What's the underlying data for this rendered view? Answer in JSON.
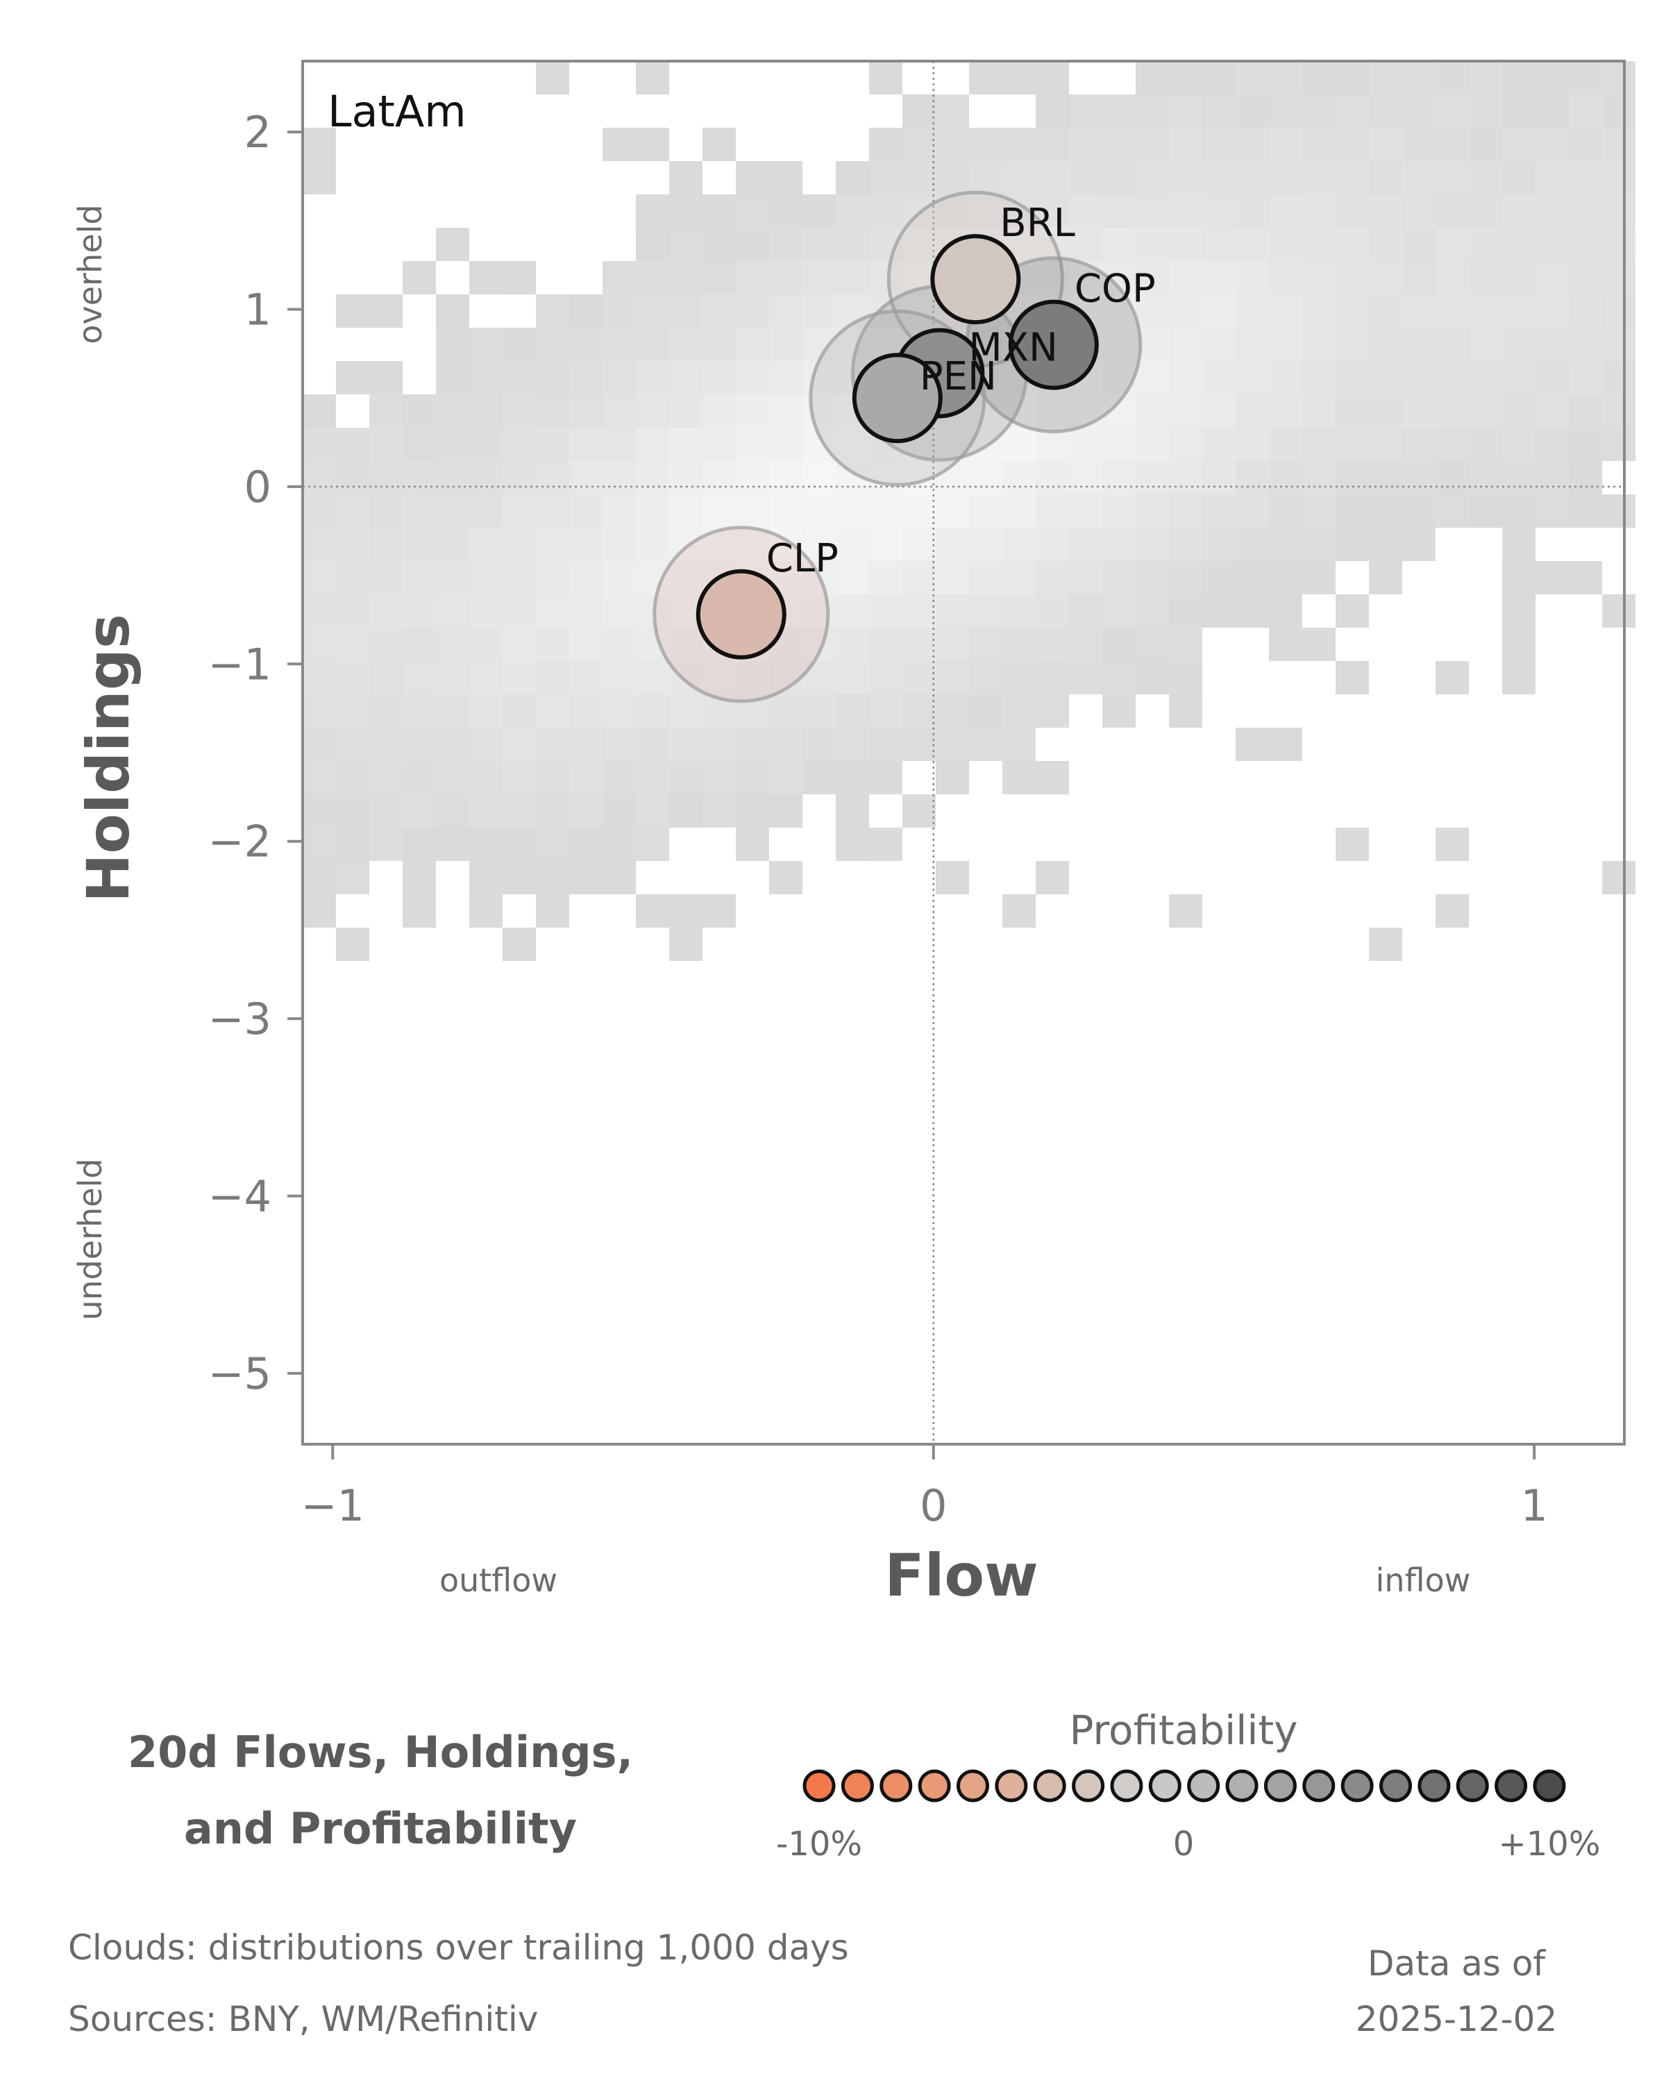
{
  "chart_data": {
    "type": "scatter",
    "panel_label": "LatAm",
    "xlabel": "Flow",
    "ylabel": "Holdings",
    "x_left_label": "outflow",
    "x_right_label": "inflow",
    "y_top_label": "overheld",
    "y_bottom_label": "underheld",
    "xlim": [
      -1.05,
      1.15
    ],
    "ylim": [
      -5.4,
      2.4
    ],
    "x_ticks": [
      -1,
      0,
      1
    ],
    "x_tick_labels": [
      "−1",
      "0",
      "1"
    ],
    "y_ticks": [
      2,
      1,
      0,
      -1,
      -2,
      -3,
      -4,
      -5
    ],
    "y_tick_labels": [
      "2",
      "1",
      "0",
      "−1",
      "−2",
      "−3",
      "−4",
      "−5"
    ],
    "grid": false,
    "reference_lines": {
      "x": 0,
      "y": 0
    },
    "points": [
      {
        "label": "BRL",
        "x": 0.07,
        "y": 1.17,
        "profitability": 0.5,
        "color": "#d2c6c0"
      },
      {
        "label": "COP",
        "x": 0.2,
        "y": 0.8,
        "profitability": 8.5,
        "color": "#7c7c7c"
      },
      {
        "label": "MXN",
        "x": 0.01,
        "y": 0.64,
        "profitability": 6.5,
        "color": "#8f8f8f"
      },
      {
        "label": "PEN",
        "x": -0.06,
        "y": 0.5,
        "profitability": 4.0,
        "color": "#a9a9a9"
      },
      {
        "label": "CLP",
        "x": -0.32,
        "y": -0.72,
        "profitability": -3.5,
        "color": "#d9b8ad"
      }
    ],
    "cloud_description_visible": false
  },
  "footer": {
    "title_line1": "20d Flows, Holdings,",
    "title_line2": "and Profitability",
    "legend_title": "Profitability",
    "legend_min": "-10%",
    "legend_mid": "0",
    "legend_max": "+10%",
    "legend_colors": [
      "#f4794a",
      "#f08258",
      "#ec8e68",
      "#e89a77",
      "#e3a586",
      "#deb19a",
      "#d8bcac",
      "#d4c6bd",
      "#d0cdca",
      "#c8c8c8",
      "#bcbcbc",
      "#b0b0b0",
      "#a3a3a3",
      "#979797",
      "#8a8a8a",
      "#7e7e7e",
      "#717171",
      "#656565",
      "#585858",
      "#4c4c4c"
    ],
    "note1": "Clouds:  distributions over trailing 1,000 days",
    "note2": "Sources:  BNY, WM/Refinitiv",
    "date_label": "Data as of",
    "date_value": "2025-12-02"
  }
}
